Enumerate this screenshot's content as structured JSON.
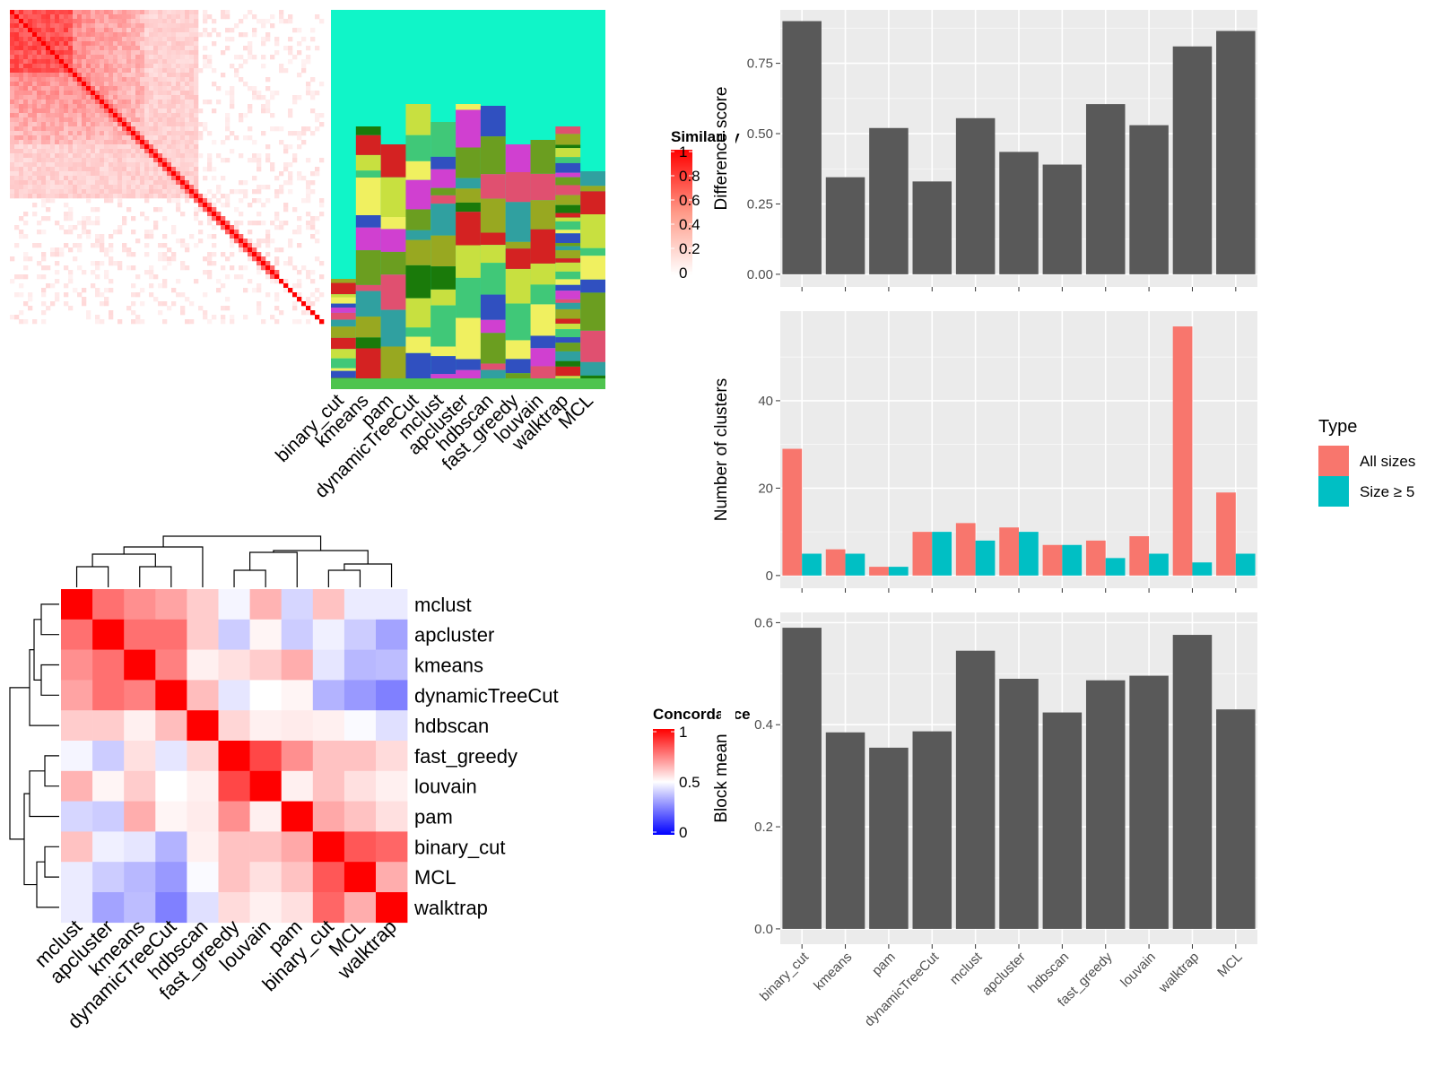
{
  "colors": {
    "panel_bg": "#ebebeb",
    "grid": "#ffffff",
    "bar_dark": "#595959",
    "all_sizes": "#f8766d",
    "size_ge5": "#00bfc4",
    "sim_red": "#ff0000",
    "conc_high": "#ff0000",
    "conc_mid": "#ffffff",
    "conc_low": "#0000ff"
  },
  "chart_data": [
    {
      "id": "similarity",
      "type": "heatmap",
      "legend_title": "Similarity",
      "legend_ticks": [
        "1",
        "0.8",
        "0.6",
        "0.4",
        "0.2",
        "0"
      ],
      "methods": [
        "binary_cut",
        "kmeans",
        "pam",
        "dynamicTreeCut",
        "mclust",
        "apcluster",
        "hdbscan",
        "fast_greedy",
        "louvain",
        "walktrap",
        "MCL"
      ]
    },
    {
      "id": "concordance",
      "type": "heatmap",
      "legend_title": "Concordance",
      "legend_ticks": [
        "1",
        "0.5",
        "0"
      ],
      "methods": [
        "mclust",
        "apcluster",
        "kmeans",
        "dynamicTreeCut",
        "hdbscan",
        "fast_greedy",
        "louvain",
        "pam",
        "binary_cut",
        "MCL",
        "walktrap"
      ],
      "values": [
        [
          1.0,
          0.78,
          0.72,
          0.68,
          0.6,
          0.48,
          0.65,
          0.42,
          0.62,
          0.46,
          0.46
        ],
        [
          0.78,
          1.0,
          0.78,
          0.78,
          0.6,
          0.4,
          0.52,
          0.4,
          0.47,
          0.4,
          0.32
        ],
        [
          0.72,
          0.78,
          1.0,
          0.75,
          0.53,
          0.56,
          0.6,
          0.66,
          0.45,
          0.36,
          0.37
        ],
        [
          0.68,
          0.78,
          0.75,
          1.0,
          0.63,
          0.45,
          0.5,
          0.52,
          0.35,
          0.3,
          0.25
        ],
        [
          0.6,
          0.6,
          0.53,
          0.63,
          1.0,
          0.58,
          0.53,
          0.54,
          0.53,
          0.49,
          0.44
        ],
        [
          0.48,
          0.4,
          0.56,
          0.45,
          0.58,
          1.0,
          0.86,
          0.72,
          0.62,
          0.62,
          0.57
        ],
        [
          0.65,
          0.52,
          0.6,
          0.5,
          0.53,
          0.86,
          1.0,
          0.53,
          0.62,
          0.56,
          0.53
        ],
        [
          0.42,
          0.4,
          0.66,
          0.52,
          0.54,
          0.72,
          0.53,
          1.0,
          0.67,
          0.62,
          0.56
        ],
        [
          0.62,
          0.47,
          0.45,
          0.35,
          0.53,
          0.62,
          0.62,
          0.67,
          1.0,
          0.83,
          0.8
        ],
        [
          0.46,
          0.4,
          0.36,
          0.3,
          0.49,
          0.62,
          0.56,
          0.62,
          0.83,
          1.0,
          0.66
        ],
        [
          0.46,
          0.32,
          0.37,
          0.25,
          0.44,
          0.57,
          0.53,
          0.56,
          0.8,
          0.66,
          1.0
        ]
      ]
    },
    {
      "id": "difference",
      "type": "bar",
      "ylabel": "Difference score",
      "categories": [
        "binary_cut",
        "kmeans",
        "pam",
        "dynamicTreeCut",
        "mclust",
        "apcluster",
        "hdbscan",
        "fast_greedy",
        "louvain",
        "walktrap",
        "MCL"
      ],
      "values": [
        0.9,
        0.345,
        0.52,
        0.33,
        0.555,
        0.435,
        0.39,
        0.605,
        0.53,
        0.81,
        0.865
      ],
      "ylim": [
        -0.045,
        0.94
      ],
      "ticks": [
        0,
        0.25,
        0.5,
        0.75
      ],
      "tick_labels": [
        "0.00",
        "0.25",
        "0.50",
        "0.75"
      ]
    },
    {
      "id": "clusters",
      "type": "bar",
      "ylabel": "Number of clusters",
      "categories": [
        "binary_cut",
        "kmeans",
        "pam",
        "dynamicTreeCut",
        "mclust",
        "apcluster",
        "hdbscan",
        "fast_greedy",
        "louvain",
        "walktrap",
        "MCL"
      ],
      "legend_title": "Type",
      "series": [
        {
          "name": "All sizes",
          "values": [
            29,
            6,
            2,
            10,
            12,
            11,
            7,
            8,
            9,
            57,
            19
          ]
        },
        {
          "name": "Size ≥ 5",
          "values": [
            5,
            5,
            2,
            10,
            8,
            10,
            7,
            4,
            5,
            3,
            5
          ]
        }
      ],
      "ylim": [
        -2.9,
        60.5
      ],
      "ticks": [
        0,
        20,
        40
      ],
      "tick_labels": [
        "0",
        "20",
        "40"
      ]
    },
    {
      "id": "blockmean",
      "type": "bar",
      "ylabel": "Block mean",
      "categories": [
        "binary_cut",
        "kmeans",
        "pam",
        "dynamicTreeCut",
        "mclust",
        "apcluster",
        "hdbscan",
        "fast_greedy",
        "louvain",
        "walktrap",
        "MCL"
      ],
      "values": [
        0.59,
        0.385,
        0.355,
        0.387,
        0.545,
        0.49,
        0.424,
        0.487,
        0.496,
        0.576,
        0.43
      ],
      "ylim": [
        -0.03,
        0.62
      ],
      "ticks": [
        0,
        0.2,
        0.4,
        0.6
      ],
      "tick_labels": [
        "0.0",
        "0.2",
        "0.4",
        "0.6"
      ]
    }
  ]
}
